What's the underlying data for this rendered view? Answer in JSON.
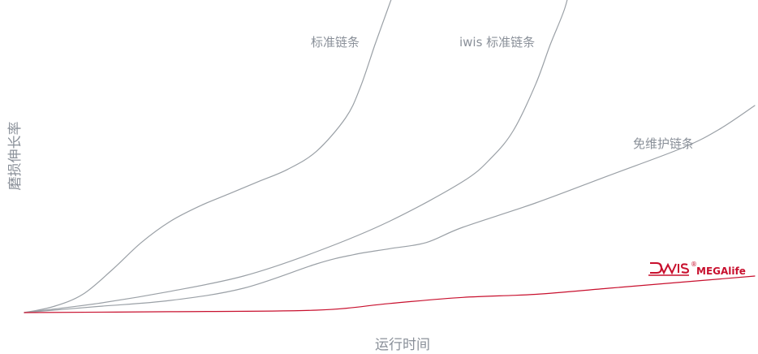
{
  "chart_data": {
    "type": "line",
    "xlabel": "运行时间",
    "ylabel": "磨损伸长率",
    "xlim": [
      0,
      100
    ],
    "ylim": [
      0,
      100
    ],
    "grid": false,
    "series": [
      {
        "name": "标准链条",
        "color": "#9aa0a6",
        "x": [
          0,
          4,
          8,
          12,
          16,
          20,
          24,
          28,
          32,
          36,
          40,
          44,
          46,
          48,
          49.5,
          51
        ],
        "y": [
          0,
          2,
          6,
          14,
          23,
          30,
          35,
          39,
          43,
          47,
          53,
          64,
          74,
          88,
          98,
          108
        ]
      },
      {
        "name": "iwis 标准链条",
        "color": "#9aa0a6",
        "x": [
          0,
          10,
          20,
          30,
          40,
          50,
          60,
          64,
          67,
          70,
          72,
          74,
          75
        ],
        "y": [
          0,
          3,
          7,
          12,
          20,
          30,
          43,
          51,
          60,
          75,
          88,
          100,
          110
        ]
      },
      {
        "name": "免维护链条",
        "color": "#9aa0a6",
        "x": [
          0,
          10,
          20,
          30,
          40,
          45,
          50,
          55,
          60,
          70,
          80,
          90,
          95,
          100
        ],
        "y": [
          0,
          2,
          4,
          8,
          16,
          19,
          21,
          23,
          28,
          36,
          45,
          54,
          60,
          68
        ]
      },
      {
        "name": "MEGAlife",
        "color": "#c8102e",
        "x": [
          0,
          20,
          40,
          50,
          60,
          70,
          80,
          90,
          100
        ],
        "y": [
          0,
          0.3,
          0.8,
          3,
          5,
          6,
          8,
          10,
          12
        ]
      }
    ]
  },
  "brand": {
    "logo_text": "IWIS",
    "registered": "®",
    "name": "MEGAlife",
    "color": "#c8102e"
  }
}
